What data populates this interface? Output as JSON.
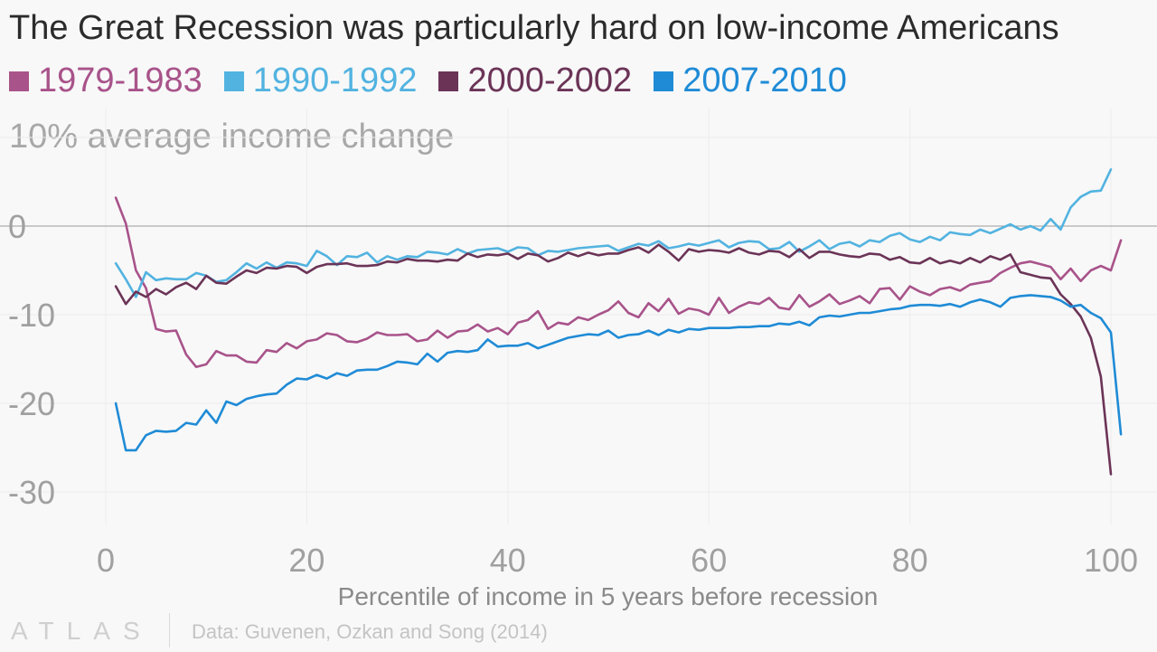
{
  "chart_data": {
    "type": "line",
    "title": "The Great Recession was particularly hard on low-income Americans",
    "ylabel": "10% average income change",
    "xlabel": "Percentile of income in 5 years before recession",
    "source": "Data: Guvenen, Ozkan and Song (2014)",
    "logo": "ATLAS",
    "xlim": [
      0,
      100
    ],
    "ylim": [
      -35,
      12
    ],
    "x_ticks": [
      0,
      20,
      40,
      60,
      80,
      100
    ],
    "x_tick_labels": [
      "0",
      "20",
      "40",
      "60",
      "80",
      "100"
    ],
    "y_ticks": [
      0,
      -10,
      -20,
      -30
    ],
    "y_tick_labels": [
      "0",
      "-10",
      "-20",
      "-30"
    ],
    "grid": true,
    "legend_position": "top-left",
    "x_start": 1,
    "series": [
      {
        "name": "1979-1983",
        "color": "#a8538a",
        "values": [
          3.2,
          0.3,
          -5.0,
          -7.0,
          -11.6,
          -11.9,
          -11.8,
          -14.5,
          -15.9,
          -15.6,
          -14.1,
          -14.6,
          -14.6,
          -15.3,
          -15.4,
          -14.0,
          -14.2,
          -13.2,
          -13.8,
          -13.0,
          -12.8,
          -12.1,
          -12.3,
          -13.0,
          -13.1,
          -12.7,
          -12.0,
          -12.3,
          -12.3,
          -12.2,
          -13.0,
          -12.8,
          -11.8,
          -12.6,
          -11.9,
          -11.8,
          -11.1,
          -11.9,
          -11.5,
          -12.2,
          -10.9,
          -10.6,
          -9.6,
          -11.6,
          -10.9,
          -11.1,
          -10.3,
          -10.6,
          -10.0,
          -9.5,
          -8.5,
          -9.8,
          -10.3,
          -8.7,
          -9.6,
          -8.2,
          -9.9,
          -9.3,
          -9.5,
          -10.0,
          -8.1,
          -9.8,
          -9.1,
          -8.6,
          -8.8,
          -8.1,
          -9.2,
          -9.4,
          -7.8,
          -9.1,
          -8.5,
          -7.7,
          -8.8,
          -8.4,
          -7.9,
          -8.7,
          -7.1,
          -7.0,
          -8.3,
          -6.8,
          -7.4,
          -7.8,
          -7.1,
          -6.9,
          -7.3,
          -6.6,
          -6.4,
          -6.2,
          -5.3,
          -4.7,
          -4.2,
          -4.0,
          -4.3,
          -4.6,
          -6.0,
          -4.8,
          -6.2,
          -5.0,
          -4.5,
          -5.0,
          -1.6
        ]
      },
      {
        "name": "1990-1992",
        "color": "#52b3e0",
        "values": [
          -4.2,
          -6.0,
          -8.0,
          -5.2,
          -6.1,
          -5.9,
          -6.0,
          -6.0,
          -5.3,
          -5.6,
          -6.3,
          -6.1,
          -5.2,
          -4.2,
          -4.8,
          -4.1,
          -4.7,
          -4.1,
          -4.2,
          -4.5,
          -2.8,
          -3.4,
          -4.4,
          -3.4,
          -3.5,
          -3.0,
          -4.1,
          -3.4,
          -3.8,
          -3.4,
          -3.5,
          -2.9,
          -3.0,
          -3.2,
          -2.6,
          -3.1,
          -2.7,
          -2.6,
          -2.5,
          -2.9,
          -2.4,
          -2.5,
          -3.3,
          -2.8,
          -2.9,
          -2.7,
          -2.5,
          -2.4,
          -2.3,
          -2.2,
          -2.8,
          -2.4,
          -2.0,
          -2.2,
          -1.7,
          -2.5,
          -2.3,
          -2.0,
          -2.2,
          -1.9,
          -1.6,
          -2.4,
          -1.9,
          -1.7,
          -1.8,
          -2.6,
          -2.5,
          -1.8,
          -2.9,
          -2.3,
          -1.6,
          -2.6,
          -2.0,
          -1.8,
          -2.3,
          -1.6,
          -1.8,
          -1.1,
          -0.8,
          -1.5,
          -1.8,
          -1.2,
          -1.6,
          -0.7,
          -0.9,
          -1.0,
          -0.4,
          -0.8,
          -0.3,
          0.2,
          -0.4,
          0.0,
          -0.5,
          0.8,
          -0.4,
          2.1,
          3.3,
          3.9,
          4.0,
          6.4
        ]
      },
      {
        "name": "2000-2002",
        "color": "#6b3457",
        "values": [
          -6.8,
          -8.8,
          -7.4,
          -8.0,
          -7.1,
          -7.7,
          -6.9,
          -6.4,
          -7.1,
          -5.6,
          -6.4,
          -6.5,
          -5.7,
          -5.0,
          -5.3,
          -4.7,
          -4.8,
          -4.5,
          -4.6,
          -5.3,
          -4.6,
          -4.3,
          -4.3,
          -4.2,
          -4.5,
          -4.5,
          -4.4,
          -4.0,
          -4.1,
          -3.7,
          -3.9,
          -3.9,
          -4.0,
          -3.8,
          -3.9,
          -3.1,
          -3.5,
          -3.2,
          -3.3,
          -3.1,
          -3.7,
          -3.1,
          -3.3,
          -4.0,
          -3.6,
          -3.0,
          -3.4,
          -3.0,
          -3.3,
          -3.1,
          -3.1,
          -2.7,
          -2.4,
          -3.0,
          -2.1,
          -2.9,
          -3.9,
          -2.6,
          -2.9,
          -2.7,
          -2.8,
          -3.0,
          -2.5,
          -3.0,
          -3.2,
          -2.8,
          -2.9,
          -3.5,
          -2.6,
          -3.6,
          -2.9,
          -2.9,
          -3.2,
          -3.4,
          -3.5,
          -3.1,
          -3.2,
          -3.8,
          -3.5,
          -4.1,
          -4.2,
          -3.6,
          -4.2,
          -3.9,
          -4.2,
          -3.6,
          -4.1,
          -3.4,
          -3.8,
          -3.2,
          -5.2,
          -5.5,
          -5.8,
          -5.9,
          -7.7,
          -8.8,
          -10.2,
          -12.6,
          -17.0,
          -28.0
        ]
      },
      {
        "name": "2007-2010",
        "color": "#1f8bd6",
        "values": [
          -20.0,
          -25.3,
          -25.3,
          -23.6,
          -23.1,
          -23.2,
          -23.1,
          -22.2,
          -22.4,
          -20.8,
          -22.2,
          -19.8,
          -20.2,
          -19.5,
          -19.2,
          -19.0,
          -18.9,
          -17.9,
          -17.2,
          -17.3,
          -16.8,
          -17.2,
          -16.6,
          -16.9,
          -16.3,
          -16.2,
          -16.2,
          -15.8,
          -15.3,
          -15.4,
          -15.6,
          -14.4,
          -15.3,
          -14.3,
          -14.1,
          -14.2,
          -14.0,
          -12.8,
          -13.6,
          -13.5,
          -13.5,
          -13.2,
          -13.8,
          -13.4,
          -13.0,
          -12.6,
          -12.4,
          -12.2,
          -12.3,
          -11.8,
          -12.6,
          -12.3,
          -12.2,
          -11.8,
          -12.3,
          -11.7,
          -12.0,
          -11.6,
          -11.7,
          -11.5,
          -11.5,
          -11.5,
          -11.4,
          -11.4,
          -11.3,
          -11.3,
          -11.0,
          -11.1,
          -10.8,
          -11.2,
          -10.3,
          -10.1,
          -10.2,
          -10.0,
          -9.8,
          -9.8,
          -9.6,
          -9.4,
          -9.3,
          -9.0,
          -8.9,
          -8.9,
          -9.0,
          -8.8,
          -9.1,
          -8.6,
          -8.3,
          -8.6,
          -9.1,
          -8.1,
          -7.9,
          -7.8,
          -7.9,
          -8.0,
          -8.4,
          -9.1,
          -8.9,
          -9.8,
          -10.4,
          -12.0,
          -23.5
        ]
      }
    ]
  }
}
